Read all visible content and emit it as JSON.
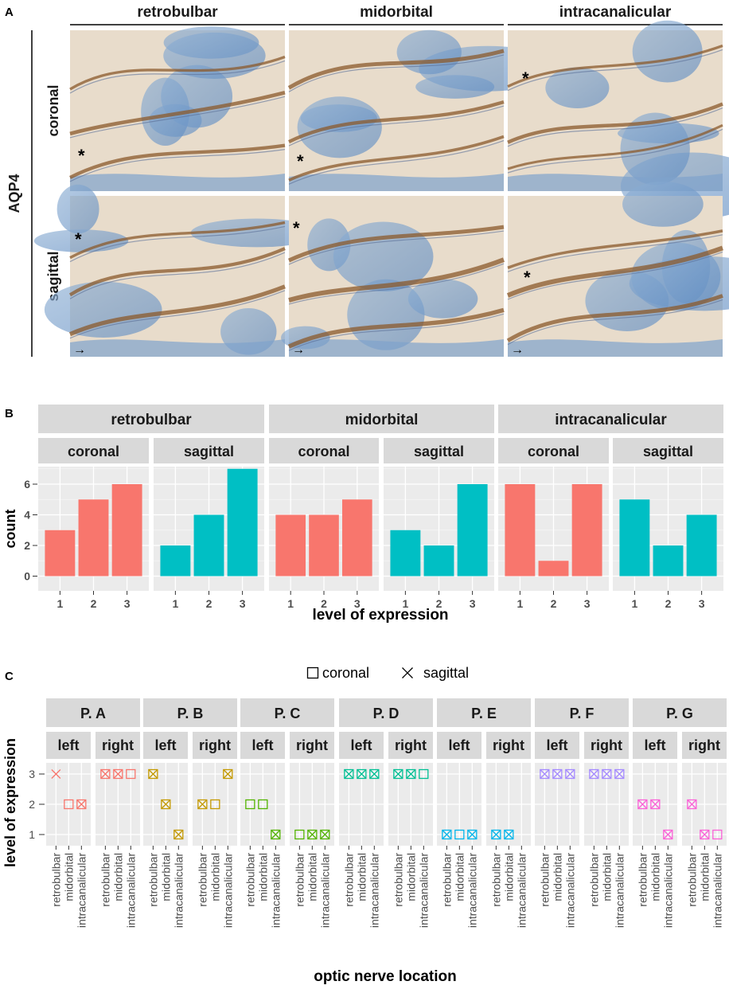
{
  "panel_a": {
    "letter": "A",
    "stain_label": "AQP4",
    "columns": [
      "retrobulbar",
      "midorbital",
      "intracanalicular"
    ],
    "rows": [
      "coronal",
      "sagittal"
    ],
    "marker": "*",
    "arrow": "→"
  },
  "chart_data": [
    {
      "type": "bar",
      "panel": "B",
      "letter": "B",
      "facets": [
        "retrobulbar",
        "midorbital",
        "intracanalicular"
      ],
      "subfacets": [
        "coronal",
        "sagittal"
      ],
      "categories": [
        1,
        2,
        3
      ],
      "series": [
        {
          "facet": "retrobulbar",
          "subfacet": "coronal",
          "values": [
            3,
            5,
            6
          ]
        },
        {
          "facet": "retrobulbar",
          "subfacet": "sagittal",
          "values": [
            2,
            4,
            7
          ]
        },
        {
          "facet": "midorbital",
          "subfacet": "coronal",
          "values": [
            4,
            4,
            5
          ]
        },
        {
          "facet": "midorbital",
          "subfacet": "sagittal",
          "values": [
            3,
            2,
            6
          ]
        },
        {
          "facet": "intracanalicular",
          "subfacet": "coronal",
          "values": [
            6,
            1,
            6
          ]
        },
        {
          "facet": "intracanalicular",
          "subfacet": "sagittal",
          "values": [
            5,
            2,
            4
          ]
        }
      ],
      "xlabel": "level of expression",
      "ylabel": "count",
      "ylim": [
        0,
        7.35
      ],
      "yticks": [
        0,
        2,
        4,
        6
      ],
      "colors": {
        "coronal": "#f8766d",
        "sagittal": "#00bfc4"
      }
    },
    {
      "type": "scatter",
      "panel": "C",
      "letter": "C",
      "legend": {
        "items": [
          {
            "symbol": "□",
            "label": "coronal"
          },
          {
            "symbol": "×",
            "label": "sagittal"
          }
        ],
        "position": "top"
      },
      "xlabel": "optic nerve location",
      "ylabel": "level of expression",
      "locations": [
        "retrobulbar",
        "midorbital",
        "intracanalicular"
      ],
      "yticks": [
        1,
        2,
        3
      ],
      "sides": [
        "left",
        "right"
      ],
      "patients": [
        {
          "name": "P. A",
          "color": "#f8766d",
          "left": [
            [
              3,
              "x"
            ],
            [
              2,
              "s"
            ],
            [
              2,
              "b"
            ]
          ],
          "right": [
            [
              3,
              "b"
            ],
            [
              3,
              "b"
            ],
            [
              3,
              "s"
            ]
          ]
        },
        {
          "name": "P. B",
          "color": "#c49a00",
          "left": [
            [
              3,
              "b"
            ],
            [
              2,
              "b"
            ],
            [
              1,
              "b"
            ]
          ],
          "right": [
            [
              2,
              "b"
            ],
            [
              2,
              "s"
            ],
            [
              3,
              "b"
            ]
          ]
        },
        {
          "name": "P. C",
          "color": "#53b400",
          "left": [
            [
              2,
              "s"
            ],
            [
              2,
              "s"
            ],
            [
              1,
              "b"
            ]
          ],
          "right": [
            [
              1,
              "s"
            ],
            [
              1,
              "b"
            ],
            [
              1,
              "b"
            ]
          ]
        },
        {
          "name": "P. D",
          "color": "#00c094",
          "left": [
            [
              3,
              "b"
            ],
            [
              3,
              "b"
            ],
            [
              3,
              "b"
            ]
          ],
          "right": [
            [
              3,
              "b"
            ],
            [
              3,
              "b"
            ],
            [
              3,
              "s"
            ]
          ]
        },
        {
          "name": "P. E",
          "color": "#00b6eb",
          "left": [
            [
              1,
              "b"
            ],
            [
              1,
              "s"
            ],
            [
              1,
              "b"
            ]
          ],
          "right": [
            [
              1,
              "b"
            ],
            [
              1,
              "b"
            ],
            null
          ]
        },
        {
          "name": "P. F",
          "color": "#a58aff",
          "left": [
            [
              3,
              "b"
            ],
            [
              3,
              "b"
            ],
            [
              3,
              "b"
            ]
          ],
          "right": [
            [
              3,
              "b"
            ],
            [
              3,
              "b"
            ],
            [
              3,
              "b"
            ]
          ]
        },
        {
          "name": "P. G",
          "color": "#fb61d7",
          "left": [
            [
              2,
              "b"
            ],
            [
              2,
              "b"
            ],
            [
              1,
              "b"
            ]
          ],
          "right": [
            [
              2,
              "b"
            ],
            [
              1,
              "b"
            ],
            [
              1,
              "s"
            ]
          ]
        }
      ]
    }
  ]
}
